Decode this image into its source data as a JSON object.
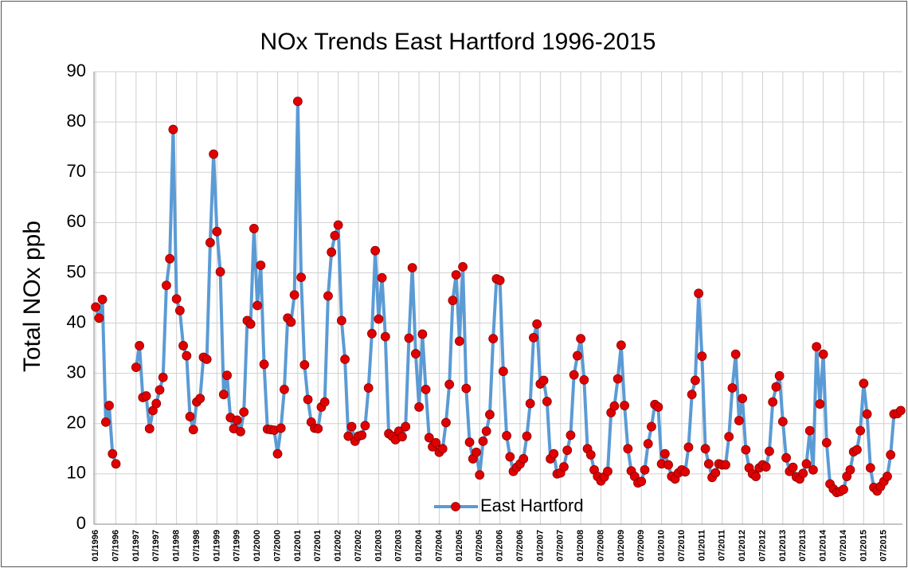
{
  "chart_data": {
    "type": "line",
    "title": "NOx Trends East Hartford 1996-2015",
    "y_label": "Total NOx ppb",
    "categories": [
      "01/1996",
      null,
      null,
      null,
      null,
      null,
      "07/1996",
      null,
      null,
      null,
      null,
      null,
      "01/1997",
      null,
      null,
      null,
      null,
      null,
      "07/1997",
      null,
      null,
      null,
      null,
      null,
      "01/1998",
      null,
      null,
      null,
      null,
      null,
      "07/1998",
      null,
      null,
      null,
      null,
      null,
      "01/1999",
      null,
      null,
      null,
      null,
      null,
      "07/1999",
      null,
      null,
      null,
      null,
      null,
      "01/2000",
      null,
      null,
      null,
      null,
      null,
      "07/2000",
      null,
      null,
      null,
      null,
      null,
      "01/2001",
      null,
      null,
      null,
      null,
      null,
      "07/2001",
      null,
      null,
      null,
      null,
      null,
      "01/2002",
      null,
      null,
      null,
      null,
      null,
      "07/2002",
      null,
      null,
      null,
      null,
      null,
      "01/2003",
      null,
      null,
      null,
      null,
      null,
      "07/2003",
      null,
      null,
      null,
      null,
      null,
      "01/2004",
      null,
      null,
      null,
      null,
      null,
      "07/2004",
      null,
      null,
      null,
      null,
      null,
      "01/2005",
      null,
      null,
      null,
      null,
      null,
      "07/2005",
      null,
      null,
      null,
      null,
      null,
      "01/2006",
      null,
      null,
      null,
      null,
      null,
      "07/2006",
      null,
      null,
      null,
      null,
      null,
      "01/2007",
      null,
      null,
      null,
      null,
      null,
      "07/2007",
      null,
      null,
      null,
      null,
      null,
      "01/2008",
      null,
      null,
      null,
      null,
      null,
      "07/2008",
      null,
      null,
      null,
      null,
      null,
      "01/2009",
      null,
      null,
      null,
      null,
      null,
      "07/2009",
      null,
      null,
      null,
      null,
      null,
      "01/2010",
      null,
      null,
      null,
      null,
      null,
      "07/2010",
      null,
      null,
      null,
      null,
      null,
      "01/2011",
      null,
      null,
      null,
      null,
      null,
      "07/2011",
      null,
      null,
      null,
      null,
      null,
      "01/2012",
      null,
      null,
      null,
      null,
      null,
      "07/2012",
      null,
      null,
      null,
      null,
      null,
      "01/2013",
      null,
      null,
      null,
      null,
      null,
      "07/2013",
      null,
      null,
      null,
      null,
      null,
      "01/2014",
      null,
      null,
      null,
      null,
      null,
      "07/2014",
      null,
      null,
      null,
      null,
      null,
      "01/2015",
      null,
      null,
      null,
      null,
      null,
      "07/2015",
      null,
      null,
      null,
      null,
      null
    ],
    "series": [
      {
        "name": "East Hartford",
        "color": "#5b9bd5",
        "marker_color": "#e00000",
        "values": [
          43.2,
          41,
          44.7,
          20.3,
          23.6,
          14,
          12,
          null,
          null,
          null,
          null,
          null,
          31.2,
          35.5,
          25.2,
          25.5,
          19,
          22.6,
          24,
          26.7,
          29.2,
          47.5,
          52.8,
          78.5,
          44.8,
          42.5,
          35.5,
          33.5,
          21.4,
          18.8,
          24.3,
          25,
          33.2,
          32.8,
          56,
          73.6,
          58.2,
          50.2,
          25.8,
          29.6,
          21.2,
          19,
          20.7,
          18.4,
          22.3,
          40.5,
          39.8,
          58.8,
          43.5,
          51.5,
          31.8,
          18.9,
          18.8,
          18.7,
          14,
          19.1,
          26.8,
          41,
          40.2,
          45.6,
          84.1,
          49.1,
          31.7,
          24.8,
          20.3,
          19.1,
          19,
          23.3,
          24.3,
          45.4,
          54.1,
          57.4,
          59.5,
          40.5,
          32.8,
          17.5,
          19.4,
          16.5,
          17.5,
          17.7,
          19.6,
          27.1,
          37.9,
          54.4,
          40.8,
          49,
          37.3,
          18,
          17.5,
          16.8,
          18.5,
          17.4,
          19.4,
          37,
          51,
          33.9,
          23.3,
          37.8,
          26.8,
          17.2,
          15.4,
          16.2,
          14.3,
          15,
          20.2,
          27.8,
          44.5,
          49.6,
          36.4,
          51.2,
          27,
          16.3,
          13,
          14.3,
          9.8,
          16.5,
          18.5,
          21.8,
          36.9,
          48.8,
          48.5,
          30.4,
          17.6,
          13.4,
          10.5,
          11.3,
          12,
          13,
          17.5,
          24,
          37.1,
          39.8,
          27.9,
          28.6,
          24.4,
          13,
          14,
          10,
          10.2,
          11.4,
          14.7,
          17.7,
          29.7,
          33.5,
          36.9,
          28.7,
          15,
          13.8,
          10.8,
          9.5,
          8.6,
          9.4,
          10.5,
          22.2,
          23.5,
          28.9,
          35.6,
          23.6,
          15,
          10.6,
          9.5,
          8.2,
          8.5,
          10.8,
          16,
          19.4,
          23.8,
          23.3,
          12,
          14,
          11.8,
          9.5,
          9,
          10.2,
          10.8,
          10.4,
          15.3,
          25.8,
          28.6,
          45.9,
          33.4,
          15,
          12,
          9.3,
          10.2,
          12,
          11.8,
          11.8,
          17.4,
          27.1,
          33.8,
          20.6,
          25,
          14.8,
          11.2,
          10,
          9.5,
          11.2,
          11.8,
          11.4,
          14.5,
          24.3,
          27.3,
          29.5,
          20.4,
          13.2,
          10.5,
          11.3,
          9.4,
          9,
          10.1,
          12,
          18.6,
          10.8,
          35.3,
          23.9,
          33.8,
          16.2,
          8,
          7,
          6.3,
          6.5,
          6.9,
          9.5,
          10.8,
          14.4,
          14.8,
          18.6,
          28,
          21.9,
          11.2,
          7.3,
          6.6,
          7.5,
          8.5,
          9.5,
          13.8,
          21.9,
          22,
          22.6
        ]
      }
    ],
    "ylim": [
      0,
      90
    ],
    "yticks": [
      0,
      10,
      20,
      30,
      40,
      50,
      60,
      70,
      80,
      90
    ],
    "grid": true,
    "legend": "bottom"
  }
}
